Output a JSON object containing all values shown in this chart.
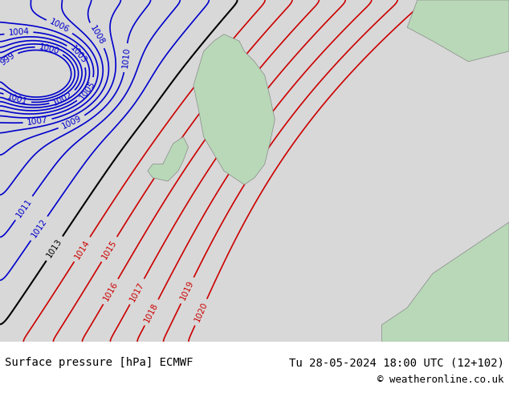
{
  "title_left": "Surface pressure [hPa] ECMWF",
  "title_right": "Tu 28-05-2024 18:00 UTC (12+102)",
  "copyright": "© weatheronline.co.uk",
  "bg_color": "#d8d8d8",
  "land_color": "#b8d8b8",
  "sea_color": "#d8d8d8",
  "isobar_blue_color": "#0000cc",
  "isobar_black_color": "#000000",
  "isobar_red_color": "#cc0000",
  "blue_isobars": [
    999,
    1000,
    1001,
    1002,
    1003,
    1004,
    1005,
    1006,
    1007,
    1008,
    1009,
    1010,
    1011,
    1012
  ],
  "black_isobars": [
    1013
  ],
  "red_isobars": [
    1014,
    1015,
    1016,
    1017,
    1018,
    1019,
    1020
  ],
  "figsize": [
    6.34,
    4.9
  ],
  "dpi": 100
}
